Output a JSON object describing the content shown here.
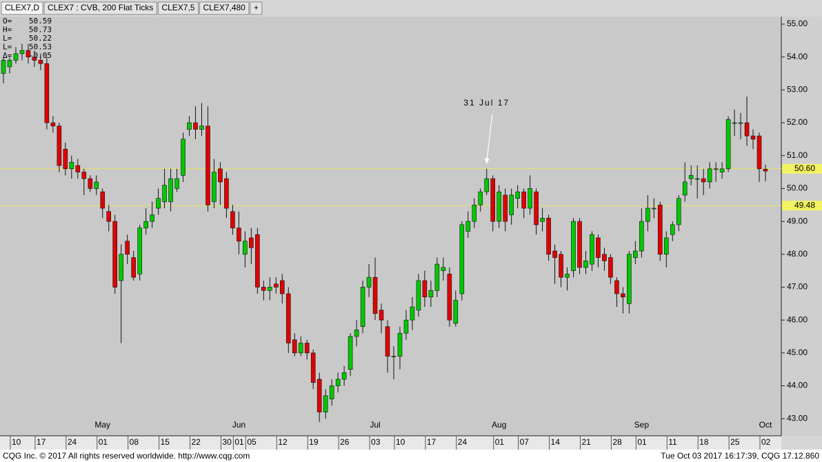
{
  "tabs": [
    "CLEX7,D",
    "CLEX7 : CVB, 200 Flat Ticks",
    "CLEX7,5",
    "CLEX7,480",
    "+"
  ],
  "footer": {
    "left": "CQG Inc. © 2017 All rights reserved worldwide. http://www.cqg.com",
    "right": "Tue Oct 03 2017 16:17:39, CQG 17.12.860"
  },
  "chart_data": {
    "type": "candlestick",
    "readout": [
      {
        "label": "O=",
        "value": "50.59"
      },
      {
        "label": "H=",
        "value": "50.73"
      },
      {
        "label": "L=",
        "value": "50.22"
      },
      {
        "label": "L=",
        "value": "50.53"
      },
      {
        "label": "Δ=",
        "value": "-0.05"
      }
    ],
    "annotation": "31 Jul 17",
    "up_color": "#00c800",
    "down_color": "#e00000",
    "ylim": [
      42.48,
      55.23
    ],
    "yticks": [
      {
        "value": 43,
        "label": "43.00"
      },
      {
        "value": 44,
        "label": "44.00"
      },
      {
        "value": 45,
        "label": "45.00"
      },
      {
        "value": 46,
        "label": "46.00"
      },
      {
        "value": 47,
        "label": "47.00"
      },
      {
        "value": 48,
        "label": "48.00"
      },
      {
        "value": 49,
        "label": "49.00"
      },
      {
        "value": 50,
        "label": "50.00"
      },
      {
        "value": 51,
        "label": "51.00"
      },
      {
        "value": 52,
        "label": "52.00"
      },
      {
        "value": 53,
        "label": "53.00"
      },
      {
        "value": 54,
        "label": "54.00"
      },
      {
        "value": 55,
        "label": "55.00"
      }
    ],
    "hlines": [
      {
        "value": 50.6,
        "label": "50.60"
      },
      {
        "value": 49.48,
        "label": "49.48"
      }
    ],
    "categories": [
      null,
      null,
      "10",
      null,
      null,
      null,
      "17",
      null,
      null,
      null,
      null,
      "24",
      null,
      null,
      null,
      null,
      "01",
      null,
      null,
      null,
      null,
      "08",
      null,
      null,
      null,
      null,
      "15",
      null,
      null,
      null,
      null,
      "22",
      null,
      null,
      null,
      null,
      "30",
      null,
      "01",
      null,
      "05",
      null,
      null,
      null,
      null,
      "12",
      null,
      null,
      null,
      null,
      "19",
      null,
      null,
      null,
      null,
      "26",
      null,
      null,
      null,
      null,
      "03",
      null,
      null,
      null,
      "10",
      null,
      null,
      null,
      null,
      "17",
      null,
      null,
      null,
      null,
      "24",
      null,
      null,
      null,
      null,
      null,
      "01",
      null,
      null,
      null,
      "07",
      null,
      null,
      null,
      null,
      "14",
      null,
      null,
      null,
      null,
      "21",
      null,
      null,
      null,
      null,
      "28",
      null,
      null,
      null,
      "01",
      null,
      null,
      null,
      null,
      "11",
      null,
      null,
      null,
      null,
      "18",
      null,
      null,
      null,
      null,
      "25",
      null,
      null,
      null,
      null,
      "02"
    ],
    "months": [
      null,
      null,
      null,
      null,
      null,
      null,
      null,
      null,
      null,
      null,
      null,
      null,
      null,
      null,
      null,
      null,
      "May",
      null,
      null,
      null,
      null,
      null,
      null,
      null,
      null,
      null,
      null,
      null,
      null,
      null,
      null,
      null,
      null,
      null,
      null,
      null,
      null,
      null,
      "Jun",
      null,
      null,
      null,
      null,
      null,
      null,
      null,
      null,
      null,
      null,
      null,
      null,
      null,
      null,
      null,
      null,
      null,
      null,
      null,
      null,
      null,
      "Jul",
      null,
      null,
      null,
      null,
      null,
      null,
      null,
      null,
      null,
      null,
      null,
      null,
      null,
      null,
      null,
      null,
      null,
      null,
      null,
      "Aug",
      null,
      null,
      null,
      null,
      null,
      null,
      null,
      null,
      null,
      null,
      null,
      null,
      null,
      null,
      null,
      null,
      null,
      null,
      null,
      null,
      null,
      null,
      "Sep",
      null,
      null,
      null,
      null,
      null,
      null,
      null,
      null,
      null,
      null,
      null,
      null,
      null,
      null,
      null,
      null,
      null,
      null,
      null,
      "Oct"
    ],
    "open": [
      53.5,
      53.7,
      53.9,
      54.1,
      54.2,
      54.0,
      53.9,
      53.8,
      52.0,
      51.9,
      51.2,
      50.6,
      50.7,
      50.5,
      50.3,
      50.0,
      49.9,
      49.3,
      49.0,
      47.2,
      48.4,
      47.9,
      47.4,
      48.8,
      49.0,
      49.4,
      49.6,
      49.6,
      50.0,
      50.4,
      51.8,
      52.0,
      51.8,
      51.9,
      49.6,
      50.6,
      50.3,
      49.3,
      48.8,
      48.0,
      48.5,
      48.6,
      47.0,
      46.9,
      47.1,
      47.2,
      46.8,
      45.4,
      45.0,
      45.3,
      45.0,
      44.2,
      43.2,
      43.6,
      44.0,
      44.2,
      44.5,
      45.5,
      45.8,
      47.0,
      47.3,
      46.3,
      45.8,
      44.9,
      44.9,
      45.6,
      46.0,
      46.3,
      47.2,
      46.7,
      46.9,
      47.5,
      47.4,
      45.9,
      46.8,
      48.7,
      49.0,
      49.5,
      49.9,
      50.3,
      49.0,
      49.8,
      49.2,
      49.7,
      49.9,
      49.4,
      49.9,
      49.0,
      49.1,
      48.1,
      48.0,
      47.3,
      47.5,
      49.0,
      47.6,
      47.7,
      48.5,
      48.0,
      47.9,
      47.2,
      46.8,
      46.5,
      47.9,
      48.1,
      49.0,
      49.4,
      49.5,
      48.0,
      48.6,
      48.9,
      49.8,
      50.3,
      50.3,
      50.3,
      50.2,
      50.6,
      50.5,
      50.6,
      52.0,
      52.0,
      52.0,
      51.6,
      51.6,
      50.59
    ],
    "high": [
      54.0,
      54.0,
      54.3,
      54.4,
      54.4,
      54.2,
      54.1,
      54.0,
      52.2,
      52.0,
      51.4,
      51.0,
      50.9,
      50.6,
      50.4,
      50.4,
      50.0,
      49.5,
      49.2,
      48.3,
      48.6,
      48.1,
      48.9,
      49.4,
      49.6,
      50.0,
      50.6,
      50.6,
      50.6,
      51.7,
      52.2,
      52.5,
      52.6,
      52.5,
      50.9,
      50.8,
      50.5,
      49.5,
      49.3,
      48.7,
      48.8,
      48.8,
      47.2,
      47.3,
      47.3,
      47.4,
      47.0,
      45.6,
      45.5,
      45.4,
      45.1,
      44.4,
      43.9,
      44.2,
      44.4,
      44.6,
      45.6,
      46.0,
      47.2,
      47.7,
      47.9,
      46.5,
      46.0,
      45.2,
      45.8,
      46.3,
      46.7,
      47.4,
      47.5,
      47.2,
      47.9,
      47.9,
      47.6,
      46.9,
      49.0,
      49.3,
      49.7,
      50.0,
      50.6,
      50.4,
      50.1,
      50.0,
      50.0,
      50.1,
      50.0,
      50.4,
      50.0,
      49.4,
      49.2,
      48.3,
      48.1,
      47.6,
      49.1,
      49.1,
      48.1,
      48.7,
      48.6,
      48.2,
      48.0,
      47.3,
      47.0,
      48.1,
      48.4,
      49.4,
      49.8,
      49.7,
      49.6,
      48.7,
      49.0,
      49.8,
      50.8,
      50.7,
      50.7,
      50.6,
      50.8,
      50.8,
      50.8,
      52.2,
      52.4,
      52.3,
      52.8,
      51.8,
      51.7,
      50.73
    ],
    "low": [
      53.2,
      53.5,
      53.8,
      53.9,
      53.8,
      53.7,
      53.6,
      51.8,
      51.7,
      50.5,
      50.4,
      50.3,
      50.3,
      49.8,
      49.9,
      49.8,
      49.1,
      48.7,
      46.8,
      45.3,
      47.7,
      47.2,
      47.2,
      48.6,
      48.8,
      49.2,
      49.4,
      49.3,
      49.9,
      50.2,
      51.6,
      51.5,
      51.6,
      49.3,
      49.4,
      49.5,
      49.1,
      48.6,
      48.0,
      47.6,
      47.7,
      46.8,
      46.6,
      46.6,
      46.8,
      46.5,
      45.0,
      44.9,
      44.9,
      44.8,
      43.9,
      42.9,
      43.0,
      43.4,
      43.8,
      44.0,
      44.3,
      45.2,
      45.6,
      46.7,
      46.0,
      45.6,
      44.4,
      44.2,
      44.5,
      45.4,
      45.7,
      46.1,
      46.4,
      46.4,
      46.7,
      47.2,
      45.8,
      45.8,
      46.6,
      48.5,
      48.8,
      49.3,
      49.8,
      48.7,
      48.8,
      48.7,
      48.9,
      49.4,
      49.1,
      49.2,
      48.6,
      48.7,
      47.8,
      47.1,
      47.0,
      46.9,
      47.3,
      47.4,
      47.4,
      47.5,
      47.6,
      47.5,
      47.1,
      46.4,
      46.2,
      46.2,
      47.7,
      47.9,
      48.7,
      49.1,
      47.8,
      47.6,
      48.4,
      48.7,
      49.6,
      50.1,
      49.7,
      49.8,
      50.0,
      50.2,
      50.3,
      50.5,
      51.6,
      51.5,
      51.3,
      51.2,
      50.2,
      50.22
    ],
    "close": [
      53.9,
      53.9,
      54.1,
      54.2,
      54.0,
      53.9,
      53.8,
      52.0,
      51.9,
      50.7,
      50.6,
      50.8,
      50.5,
      50.3,
      50.0,
      50.2,
      49.4,
      49.0,
      47.0,
      48.0,
      48.0,
      47.3,
      48.8,
      49.0,
      49.2,
      49.7,
      50.1,
      50.3,
      50.3,
      51.5,
      52.0,
      51.8,
      51.9,
      49.5,
      50.5,
      50.2,
      49.4,
      48.8,
      48.4,
      48.4,
      48.2,
      47.0,
      46.9,
      47.0,
      47.0,
      46.8,
      45.3,
      45.0,
      45.3,
      45.0,
      44.1,
      43.2,
      43.7,
      44.0,
      44.2,
      44.4,
      45.5,
      45.7,
      47.0,
      47.3,
      46.2,
      46.0,
      44.9,
      44.9,
      45.6,
      46.0,
      46.4,
      47.2,
      46.7,
      46.9,
      47.7,
      47.6,
      46.0,
      46.6,
      48.9,
      49.0,
      49.5,
      49.9,
      50.3,
      49.0,
      49.9,
      49.0,
      49.8,
      49.9,
      49.4,
      50.0,
      48.9,
      49.1,
      48.0,
      47.9,
      47.3,
      47.4,
      49.0,
      47.6,
      47.8,
      48.6,
      47.9,
      47.8,
      47.3,
      46.8,
      46.7,
      48.0,
      48.1,
      49.0,
      49.4,
      49.4,
      48.0,
      48.5,
      48.9,
      49.7,
      50.2,
      50.4,
      50.3,
      50.2,
      50.6,
      50.6,
      50.6,
      52.1,
      52.0,
      52.0,
      51.6,
      51.5,
      50.6,
      50.53
    ]
  }
}
